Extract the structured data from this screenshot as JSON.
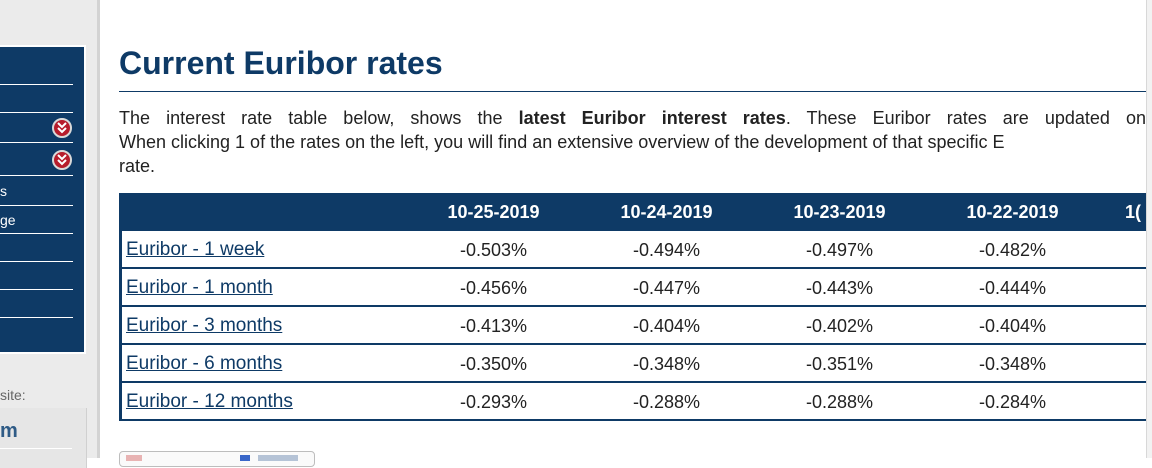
{
  "sidebar": {
    "fragments": [
      "s",
      "ge"
    ],
    "site_label": "site:",
    "site_box_text": "m"
  },
  "page": {
    "title": "Current Euribor rates",
    "intro": {
      "l1_a": "The interest rate table below, shows the ",
      "l1_b": "latest Euribor interest rates",
      "l1_c": ". These Euribor rates are updated on",
      "l2": "When clicking 1 of the rates on the left, you will find an extensive overview of the development of that specific E",
      "l3": "rate."
    }
  },
  "table": {
    "dates": [
      "10-25-2019",
      "10-24-2019",
      "10-23-2019",
      "10-22-2019",
      "1("
    ],
    "rows": [
      {
        "name": "Euribor - 1 week",
        "values": [
          "-0.503%",
          "-0.494%",
          "-0.497%",
          "-0.482%"
        ]
      },
      {
        "name": "Euribor - 1 month",
        "values": [
          "-0.456%",
          "-0.447%",
          "-0.443%",
          "-0.444%"
        ]
      },
      {
        "name": "Euribor - 3 months",
        "values": [
          "-0.413%",
          "-0.404%",
          "-0.402%",
          "-0.404%"
        ]
      },
      {
        "name": "Euribor - 6 months",
        "values": [
          "-0.350%",
          "-0.348%",
          "-0.351%",
          "-0.348%"
        ]
      },
      {
        "name": "Euribor - 12 months",
        "values": [
          "-0.293%",
          "-0.288%",
          "-0.288%",
          "-0.284%"
        ]
      }
    ]
  },
  "colors": {
    "navy": "#0e3a66",
    "chevron_red": "#b71c2b"
  }
}
